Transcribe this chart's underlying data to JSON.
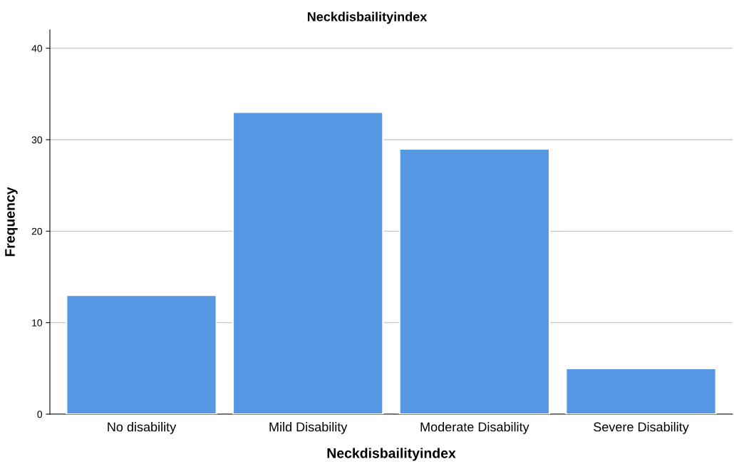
{
  "chart_data": {
    "type": "bar",
    "title": "Neckdisbailityindex",
    "xlabel": "Neckdisbailityindex",
    "ylabel": "Frequency",
    "categories": [
      "No disability",
      "Mild Disability",
      "Moderate Disability",
      "Severe Disability"
    ],
    "values": [
      13,
      33,
      29,
      5
    ],
    "color": "#5597e3",
    "ylim": [
      0,
      42
    ],
    "yticks": [
      0,
      10,
      20,
      30,
      40
    ],
    "grid": "y",
    "legend": false
  }
}
